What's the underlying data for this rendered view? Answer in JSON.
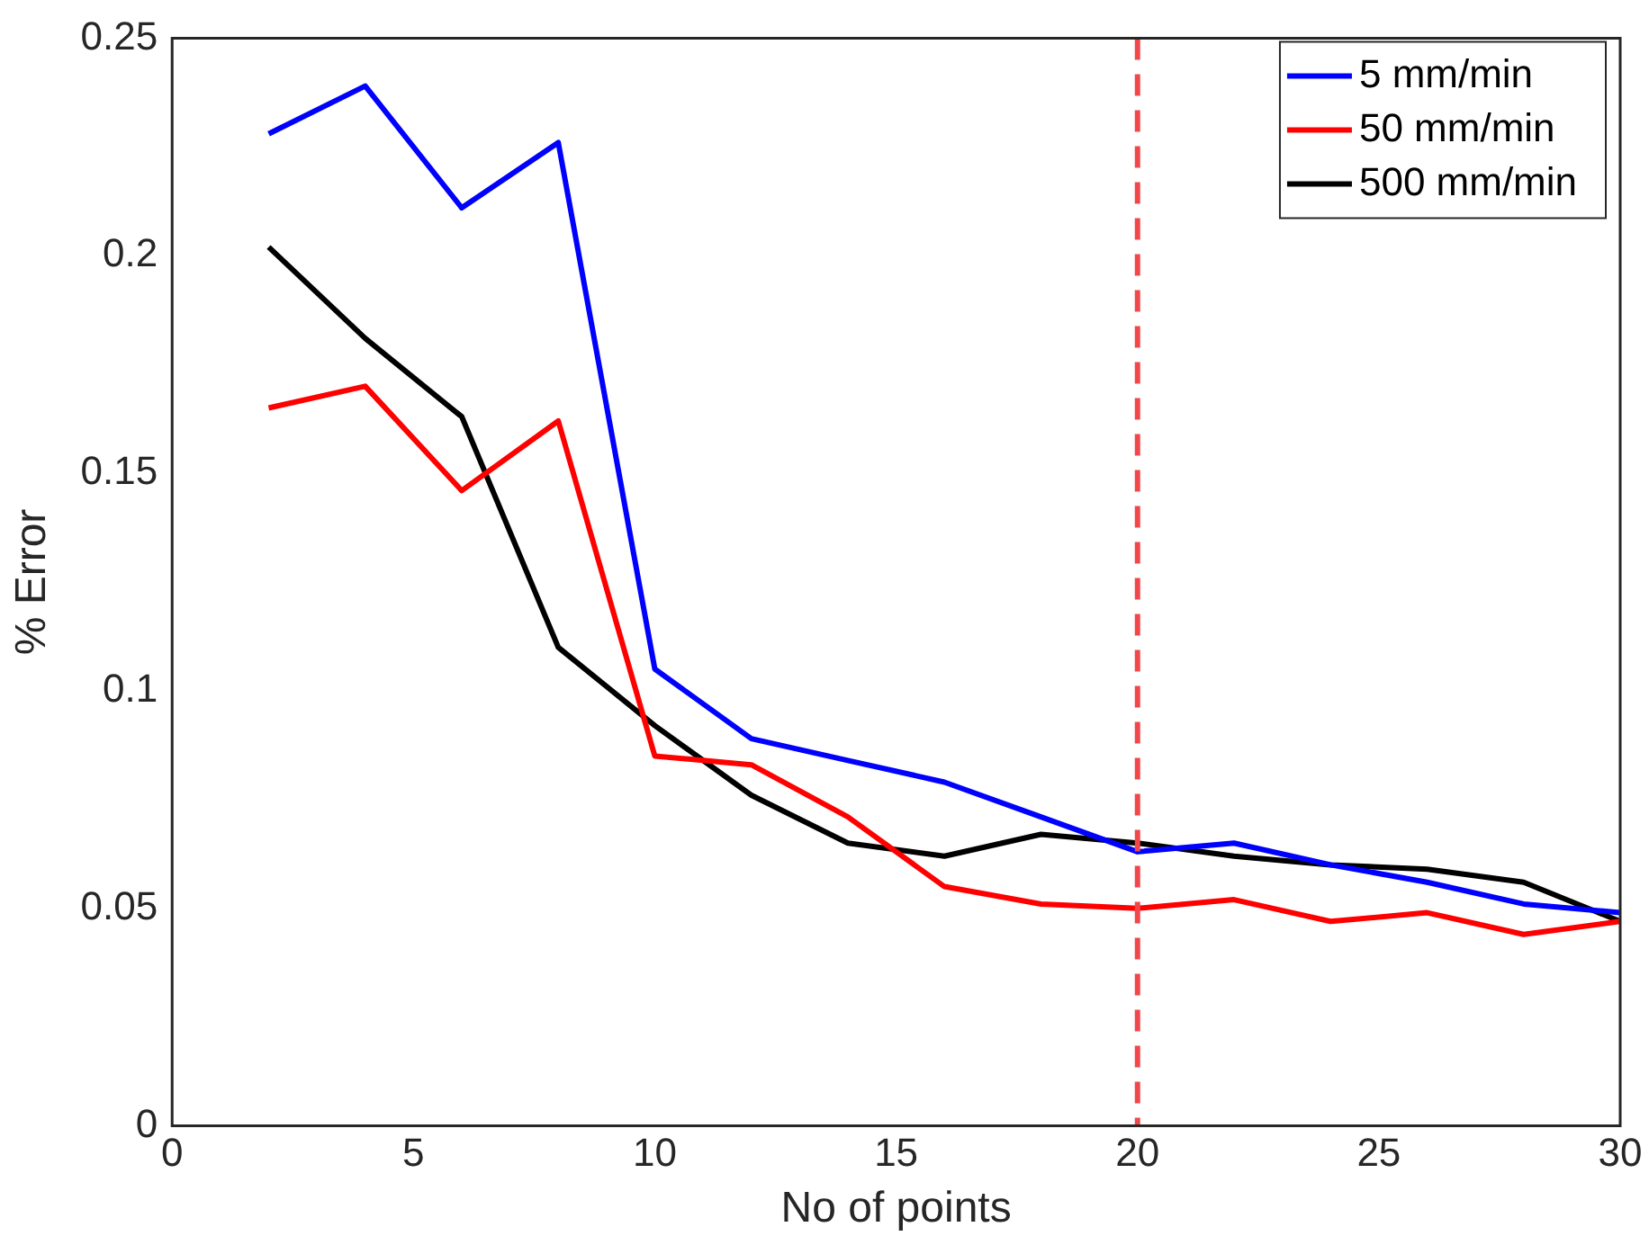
{
  "chart_data": {
    "type": "line",
    "xlabel": "No of points",
    "ylabel": "% Error",
    "x": [
      2,
      4,
      6,
      8,
      10,
      12,
      14,
      16,
      18,
      20,
      22,
      24,
      26,
      28,
      30
    ],
    "series": [
      {
        "name": "5 mm/min",
        "color": "#0000ff",
        "values": [
          0.228,
          0.239,
          0.211,
          0.226,
          0.105,
          0.089,
          0.084,
          0.079,
          0.071,
          0.063,
          0.065,
          0.06,
          0.056,
          0.051,
          0.049
        ]
      },
      {
        "name": "50 mm/min",
        "color": "#ff0000",
        "values": [
          0.165,
          0.17,
          0.146,
          0.162,
          0.085,
          0.083,
          0.071,
          0.055,
          0.051,
          0.05,
          0.052,
          0.047,
          0.049,
          0.044,
          0.047
        ]
      },
      {
        "name": "500 mm/min",
        "color": "#000000",
        "values": [
          0.202,
          0.181,
          0.163,
          0.11,
          0.092,
          0.076,
          0.065,
          0.062,
          0.067,
          0.065,
          0.062,
          0.06,
          0.059,
          0.056,
          0.047
        ]
      }
    ],
    "xlim": [
      0,
      30
    ],
    "xticks": [
      0,
      5,
      10,
      15,
      20,
      25,
      30
    ],
    "ylim": [
      0,
      0.25
    ],
    "yticks": [
      0,
      0.05,
      0.1,
      0.15,
      0.2,
      0.25
    ],
    "ref_lines": [
      {
        "axis": "x",
        "value": 20,
        "color": "#f0484a",
        "line_style": "dashed"
      }
    ],
    "grid": false,
    "legend": "top right",
    "marker": "none",
    "line_style": "solid"
  }
}
